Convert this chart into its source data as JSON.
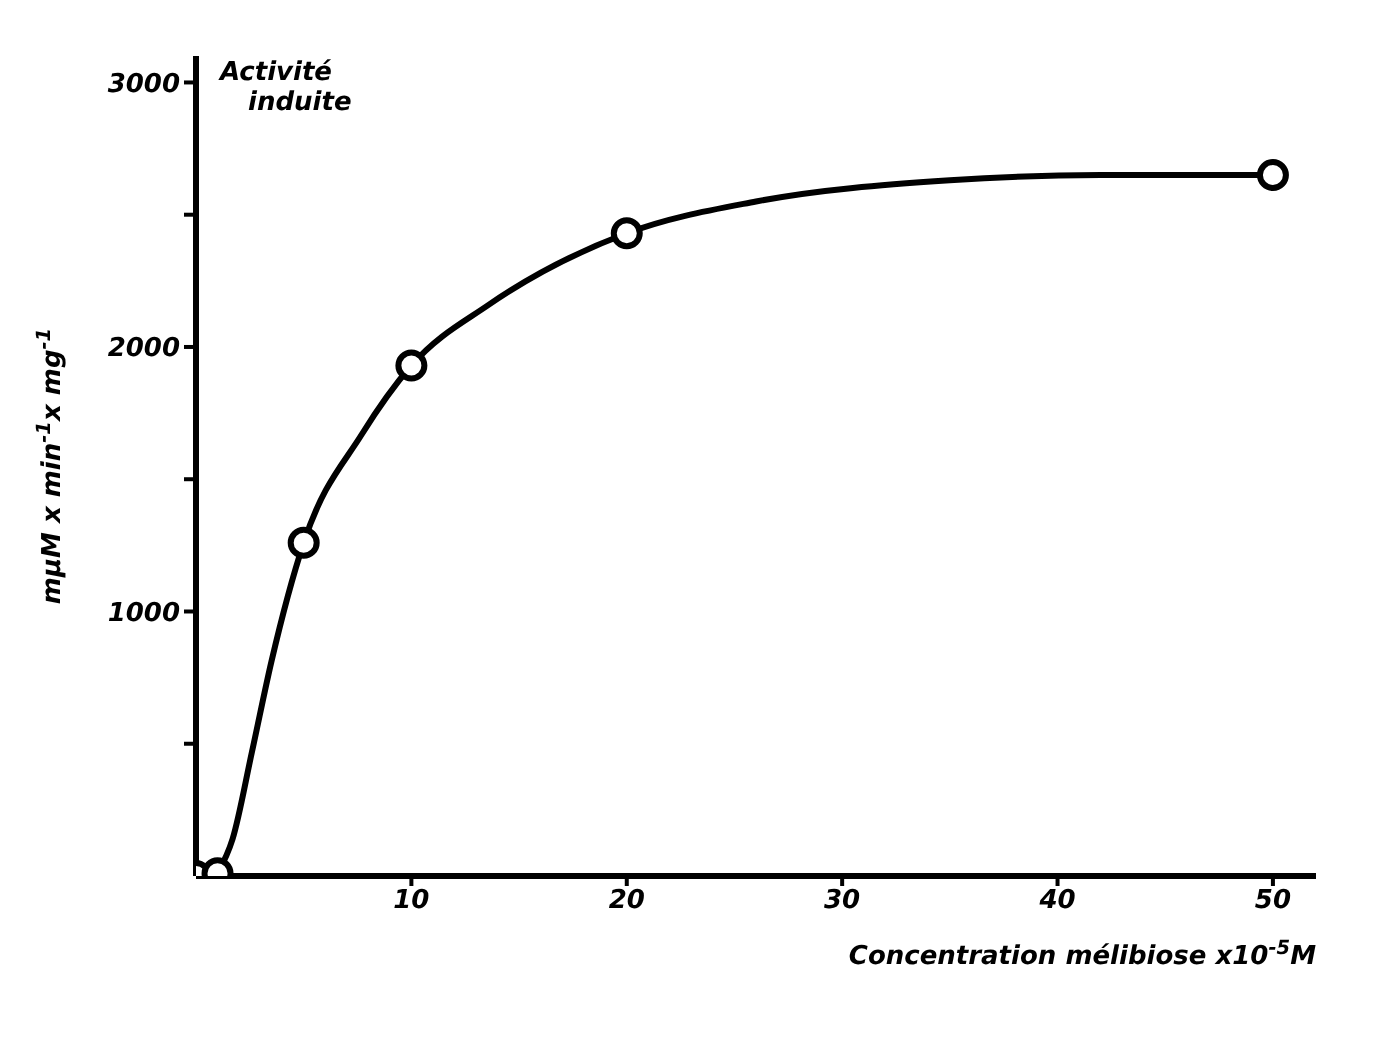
{
  "chart_data": {
    "type": "scatter",
    "xlabel": "Concentration mélibiose x10$^{-5}$M",
    "ylabel": "mµM x min$^{-1}$x mg$^{-1}$",
    "annotations": [
      "Activité induite"
    ],
    "xlim": [
      0,
      52
    ],
    "xticks": [
      10,
      20,
      30,
      40,
      50
    ],
    "ylim": [
      0,
      3100
    ],
    "yticks": [
      {
        "value": 500,
        "label": null
      },
      1000,
      {
        "value": 1500,
        "label": null
      },
      2000,
      {
        "value": 2500,
        "label": null
      },
      3000
    ],
    "grid": false,
    "marker": "circle",
    "series": [
      {
        "type": "line",
        "color": "#000000",
        "marker": "none",
        "line_style": "solid",
        "x": [
          1,
          1.7,
          2.6,
          3.5,
          5,
          7.7,
          10,
          13.6,
          20,
          26,
          35,
          42,
          50
        ],
        "values": [
          10,
          140,
          470,
          810,
          1260,
          1670,
          1930,
          2160,
          2430,
          2550,
          2630,
          2650,
          2650
        ]
      },
      {
        "color": "#000000",
        "x": [
          0,
          1,
          5,
          10,
          20,
          50
        ],
        "values": [
          0,
          10,
          1260,
          1930,
          2430,
          2650
        ]
      }
    ]
  }
}
